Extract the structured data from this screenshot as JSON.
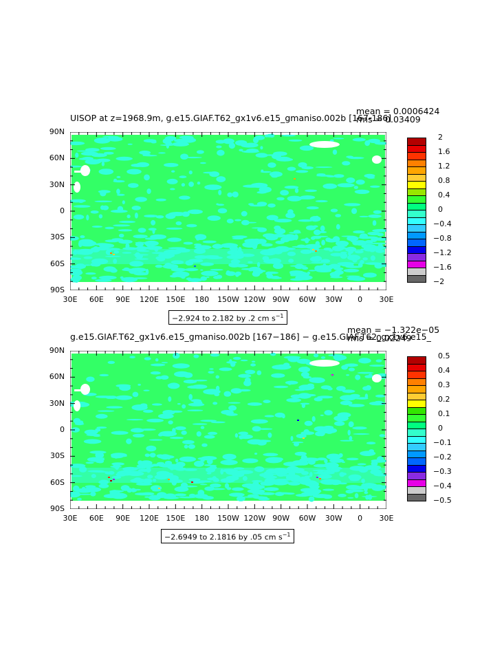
{
  "chart_data": [
    {
      "type": "heatmap",
      "title": "UISOP at z=1968.9m, g.e15.GIAF.T62_gx1v6.e15_gmaniso.002b [167-186]",
      "stats": {
        "mean": "mean = 0.0006424",
        "rms": "rms = 0.03409"
      },
      "range_label": "−2.924 to 2.182 by .2 cm s",
      "range_sup": "−1",
      "y_ticks": [
        "90N",
        "60N",
        "30N",
        "0",
        "30S",
        "60S",
        "90S"
      ],
      "x_ticks": [
        "30E",
        "60E",
        "90E",
        "120E",
        "150E",
        "180",
        "150W",
        "120W",
        "90W",
        "60W",
        "30W",
        "0",
        "30E"
      ],
      "colorbar_labels": [
        "2",
        "1.6",
        "1.2",
        "0.8",
        "0.4",
        "0",
        "−0.4",
        "−0.8",
        "−1.2",
        "−1.6",
        "−2"
      ],
      "colorbar_colors": [
        "#b30000",
        "#e60000",
        "#ff3300",
        "#ff8000",
        "#ffa500",
        "#ffcc33",
        "#ffff00",
        "#99e600",
        "#33ff33",
        "#00ff80",
        "#33ffcc",
        "#33ffff",
        "#33ccff",
        "#0099ff",
        "#0066ff",
        "#0000ee",
        "#8a2be2",
        "#e600e6",
        "#cccccc",
        "#666666"
      ],
      "ocean_color": "#33ff66",
      "anomaly_color": "#33ffdd"
    },
    {
      "type": "heatmap",
      "title": "g.e15.GIAF.T62_gx1v6.e15_gmaniso.002b [167−186] − g.e15.GIAF.T62_gx1v6.e15_",
      "stats": {
        "mean": "mean = −1.322e−05",
        "rms": "rms = 0.02249"
      },
      "range_label": "−2.6949 to 2.1816 by .05 cm s",
      "range_sup": "−1",
      "y_ticks": [
        "90N",
        "60N",
        "30N",
        "0",
        "30S",
        "60S",
        "90S"
      ],
      "x_ticks": [
        "30E",
        "60E",
        "90E",
        "120E",
        "150E",
        "180",
        "150W",
        "120W",
        "90W",
        "60W",
        "30W",
        "0",
        "30E"
      ],
      "colorbar_labels": [
        "0.5",
        "0.4",
        "0.3",
        "0.2",
        "0.1",
        "0",
        "−0.1",
        "−0.2",
        "−0.3",
        "−0.4",
        "−0.5"
      ],
      "colorbar_colors": [
        "#b30000",
        "#e60000",
        "#ff3300",
        "#ff8000",
        "#ffa500",
        "#ffcc33",
        "#ffff00",
        "#33e600",
        "#33ff33",
        "#00ff80",
        "#33ffcc",
        "#33ffff",
        "#33ccff",
        "#0099ff",
        "#0066ff",
        "#0000ee",
        "#8a2be2",
        "#e600e6",
        "#cccccc",
        "#666666"
      ],
      "ocean_color": "#33ff66",
      "anomaly_color": "#33ffdd"
    }
  ]
}
